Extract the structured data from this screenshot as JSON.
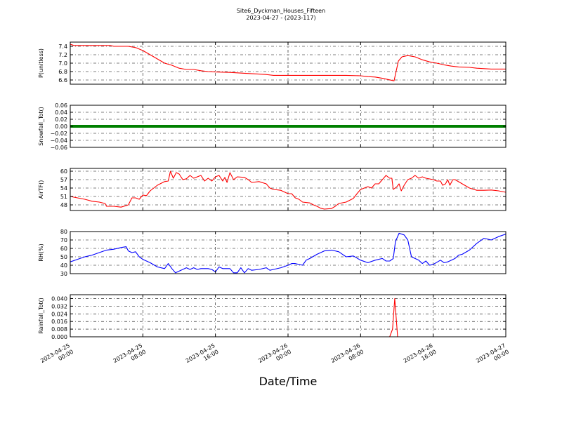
{
  "header": {
    "title": "Site6_Dyckman_Houses_Fifteen",
    "subtitle": "2023-04-27 - (2023-117)"
  },
  "x_axis_label": "Date/Time",
  "chart_data": [
    {
      "type": "line",
      "ylabel": "P(unitless)",
      "color": "#ff0000",
      "ylim": [
        6.5,
        7.5
      ],
      "yticks": [
        6.6,
        6.8,
        7.0,
        7.2,
        7.4
      ],
      "ytick_labels": [
        "6.6",
        "6.8",
        "7.0",
        "7.2",
        "7.4"
      ],
      "grid": true,
      "points": [
        [
          0,
          7.45
        ],
        [
          0.5,
          7.42
        ],
        [
          2,
          7.42
        ],
        [
          4,
          7.42
        ],
        [
          5.5,
          7.42
        ],
        [
          6,
          7.4
        ],
        [
          8,
          7.4
        ],
        [
          9,
          7.37
        ],
        [
          10,
          7.3
        ],
        [
          11,
          7.2
        ],
        [
          12,
          7.1
        ],
        [
          13,
          7.0
        ],
        [
          14,
          6.95
        ],
        [
          15,
          6.88
        ],
        [
          16,
          6.85
        ],
        [
          17,
          6.85
        ],
        [
          18,
          6.82
        ],
        [
          19,
          6.8
        ],
        [
          20,
          6.79
        ],
        [
          22,
          6.78
        ],
        [
          24,
          6.76
        ],
        [
          26,
          6.74
        ],
        [
          27,
          6.73
        ],
        [
          28,
          6.71
        ],
        [
          30,
          6.71
        ],
        [
          34,
          6.71
        ],
        [
          38,
          6.71
        ],
        [
          40,
          6.7
        ],
        [
          41,
          6.68
        ],
        [
          42,
          6.67
        ],
        [
          43,
          6.64
        ],
        [
          44.6,
          6.58
        ],
        [
          45.2,
          7.05
        ],
        [
          45.7,
          7.15
        ],
        [
          46.5,
          7.18
        ],
        [
          47.5,
          7.15
        ],
        [
          48.5,
          7.08
        ],
        [
          49.5,
          7.03
        ],
        [
          50.5,
          7.0
        ],
        [
          51.5,
          6.96
        ],
        [
          52.5,
          6.93
        ],
        [
          53.5,
          6.91
        ],
        [
          55,
          6.9
        ],
        [
          56,
          6.88
        ],
        [
          57,
          6.87
        ],
        [
          58,
          6.86
        ],
        [
          59,
          6.86
        ],
        [
          60,
          6.86
        ]
      ]
    },
    {
      "type": "line",
      "ylabel": "Snowfall_Tot()",
      "color": "#008000",
      "ylim": [
        -0.06,
        0.06
      ],
      "yticks": [
        -0.06,
        -0.04,
        -0.02,
        0.0,
        0.02,
        0.04,
        0.06
      ],
      "ytick_labels": [
        "−0.06",
        "−0.04",
        "−0.02",
        "0.00",
        "0.02",
        "0.04",
        "0.06"
      ],
      "grid": true,
      "thick": true,
      "points": [
        [
          0,
          0
        ],
        [
          60,
          0
        ]
      ]
    },
    {
      "type": "line",
      "ylabel": "AirTF()",
      "color": "#ff0000",
      "ylim": [
        46,
        61
      ],
      "yticks": [
        48,
        51,
        54,
        57,
        60
      ],
      "ytick_labels": [
        "48",
        "51",
        "54",
        "57",
        "60"
      ],
      "grid": true,
      "points": [
        [
          0,
          51
        ],
        [
          1,
          50.5
        ],
        [
          2,
          50
        ],
        [
          3,
          49.3
        ],
        [
          4,
          49
        ],
        [
          4.8,
          48.5
        ],
        [
          5,
          47.5
        ],
        [
          6,
          47.5
        ],
        [
          7,
          47.2
        ],
        [
          8,
          48
        ],
        [
          8.5,
          50.5
        ],
        [
          9,
          50.5
        ],
        [
          9.5,
          50
        ],
        [
          10,
          51.5
        ],
        [
          10.5,
          51.3
        ],
        [
          11,
          53
        ],
        [
          12,
          55
        ],
        [
          13,
          56.3
        ],
        [
          13.5,
          56.5
        ],
        [
          13.8,
          60
        ],
        [
          14.2,
          57.5
        ],
        [
          14.6,
          59.5
        ],
        [
          15,
          59
        ],
        [
          15.5,
          57
        ],
        [
          16,
          57.3
        ],
        [
          16.5,
          58.5
        ],
        [
          17,
          57.5
        ],
        [
          18,
          58.5
        ],
        [
          18.5,
          56.5
        ],
        [
          19,
          57.5
        ],
        [
          19.5,
          56.5
        ],
        [
          20,
          58
        ],
        [
          20.5,
          58.5
        ],
        [
          21,
          56.5
        ],
        [
          21.3,
          57.8
        ],
        [
          21.6,
          56
        ],
        [
          22,
          59.5
        ],
        [
          22.5,
          57
        ],
        [
          23,
          58
        ],
        [
          24,
          57.8
        ],
        [
          24.5,
          57
        ],
        [
          25,
          56
        ],
        [
          26,
          56.3
        ],
        [
          27,
          55.5
        ],
        [
          27.5,
          54
        ],
        [
          28,
          53.5
        ],
        [
          29,
          53.2
        ],
        [
          30,
          52
        ],
        [
          30.5,
          52
        ],
        [
          31,
          50.5
        ],
        [
          31.5,
          50
        ],
        [
          32,
          49
        ],
        [
          33,
          48.7
        ],
        [
          33.5,
          48
        ],
        [
          34,
          47.5
        ],
        [
          34.5,
          46.8
        ],
        [
          35,
          46.5
        ],
        [
          36,
          46.7
        ],
        [
          36.5,
          47.5
        ],
        [
          37,
          48.5
        ],
        [
          38,
          49
        ],
        [
          39,
          50.3
        ],
        [
          39.5,
          52
        ],
        [
          40,
          53.5
        ],
        [
          40.5,
          54
        ],
        [
          41,
          54.5
        ],
        [
          41.5,
          54
        ],
        [
          42,
          55.5
        ],
        [
          42.5,
          55.5
        ],
        [
          43,
          57
        ],
        [
          43.5,
          58.5
        ],
        [
          44,
          57.5
        ],
        [
          44.3,
          57.5
        ],
        [
          44.5,
          53.5
        ],
        [
          45,
          54.5
        ],
        [
          45.3,
          55.5
        ],
        [
          45.6,
          53
        ],
        [
          46,
          55
        ],
        [
          46.5,
          57
        ],
        [
          47,
          57.5
        ],
        [
          47.5,
          58.5
        ],
        [
          48,
          57.5
        ],
        [
          48.5,
          58
        ],
        [
          49,
          57.5
        ],
        [
          50,
          57
        ],
        [
          50.5,
          56.5
        ],
        [
          51,
          56.5
        ],
        [
          51.3,
          55
        ],
        [
          51.7,
          55.5
        ],
        [
          52,
          57
        ],
        [
          52.3,
          55
        ],
        [
          52.7,
          57
        ],
        [
          53,
          57
        ],
        [
          54,
          55.5
        ],
        [
          55,
          54
        ],
        [
          56,
          53.2
        ],
        [
          57,
          53.2
        ],
        [
          58,
          53.3
        ],
        [
          59,
          53
        ],
        [
          60,
          52.5
        ]
      ]
    },
    {
      "type": "line",
      "ylabel": "RH(%)",
      "color": "#0000ff",
      "ylim": [
        30,
        80
      ],
      "yticks": [
        30,
        40,
        50,
        60,
        70,
        80
      ],
      "ytick_labels": [
        "30",
        "40",
        "50",
        "60",
        "70",
        "80"
      ],
      "grid": true,
      "points": [
        [
          0,
          44
        ],
        [
          1,
          47
        ],
        [
          2,
          50
        ],
        [
          3,
          52
        ],
        [
          4,
          55
        ],
        [
          5,
          58
        ],
        [
          6,
          59
        ],
        [
          7,
          61
        ],
        [
          7.7,
          62
        ],
        [
          8,
          57
        ],
        [
          8.5,
          55
        ],
        [
          9,
          56
        ],
        [
          9.5,
          50
        ],
        [
          10,
          47
        ],
        [
          11,
          43
        ],
        [
          12,
          38
        ],
        [
          13,
          36
        ],
        [
          13.5,
          42
        ],
        [
          14,
          36
        ],
        [
          14.5,
          31
        ],
        [
          15,
          33
        ],
        [
          16,
          37
        ],
        [
          16.5,
          35
        ],
        [
          17,
          37
        ],
        [
          17.5,
          35
        ],
        [
          18,
          36
        ],
        [
          19,
          36
        ],
        [
          19.5,
          35
        ],
        [
          20,
          32
        ],
        [
          20.5,
          38
        ],
        [
          21,
          36
        ],
        [
          22,
          36
        ],
        [
          22.5,
          31
        ],
        [
          23,
          31
        ],
        [
          23.5,
          37
        ],
        [
          24,
          31
        ],
        [
          24.5,
          36
        ],
        [
          25,
          34
        ],
        [
          26,
          35
        ],
        [
          27,
          37
        ],
        [
          27.5,
          34
        ],
        [
          28,
          35
        ],
        [
          29,
          37
        ],
        [
          30,
          40
        ],
        [
          30.5,
          42
        ],
        [
          31,
          42
        ],
        [
          32,
          40
        ],
        [
          32.5,
          46
        ],
        [
          33,
          48
        ],
        [
          34,
          53
        ],
        [
          35,
          57
        ],
        [
          36,
          58
        ],
        [
          37,
          56
        ],
        [
          37.5,
          53
        ],
        [
          38,
          50
        ],
        [
          39,
          51
        ],
        [
          40,
          46
        ],
        [
          41,
          43
        ],
        [
          42,
          46
        ],
        [
          43,
          48
        ],
        [
          43.5,
          45
        ],
        [
          44,
          45
        ],
        [
          44.5,
          48
        ],
        [
          44.8,
          68
        ],
        [
          45.3,
          78
        ],
        [
          46,
          76
        ],
        [
          46.5,
          70
        ],
        [
          47,
          50
        ],
        [
          48,
          46
        ],
        [
          48.5,
          42
        ],
        [
          49,
          45
        ],
        [
          49.5,
          40
        ],
        [
          50,
          41
        ],
        [
          51,
          46
        ],
        [
          51.5,
          43
        ],
        [
          52,
          44
        ],
        [
          53,
          48
        ],
        [
          53.5,
          52
        ],
        [
          54,
          53
        ],
        [
          55,
          58
        ],
        [
          56,
          66
        ],
        [
          57,
          72
        ],
        [
          58,
          70
        ],
        [
          58.5,
          72
        ],
        [
          59,
          74
        ],
        [
          60,
          77
        ]
      ]
    },
    {
      "type": "line",
      "ylabel": "Rainfall_Tot()",
      "color": "#ff0000",
      "ylim": [
        0,
        0.044
      ],
      "yticks": [
        0.0,
        0.008,
        0.016,
        0.024,
        0.032,
        0.04
      ],
      "ytick_labels": [
        "0.000",
        "0.008",
        "0.016",
        "0.024",
        "0.032",
        "0.040"
      ],
      "grid": true,
      "points": [
        [
          0,
          0
        ],
        [
          44,
          0
        ],
        [
          44.4,
          0.008
        ],
        [
          44.7,
          0.04
        ],
        [
          45.1,
          0
        ],
        [
          60,
          0
        ]
      ]
    }
  ],
  "x_axis": {
    "range": [
      "2023-04-25 00:00",
      "2023-04-27 00:00"
    ],
    "ticks": [
      {
        "line1": "2023-04-25",
        "line2": "00:00"
      },
      {
        "line1": "2023-04-25",
        "line2": "08:00"
      },
      {
        "line1": "2023-04-25",
        "line2": "16:00"
      },
      {
        "line1": "2023-04-26",
        "line2": "00:00"
      },
      {
        "line1": "2023-04-26",
        "line2": "08:00"
      },
      {
        "line1": "2023-04-26",
        "line2": "16:00"
      },
      {
        "line1": "2023-04-27",
        "line2": "00:00"
      }
    ]
  }
}
